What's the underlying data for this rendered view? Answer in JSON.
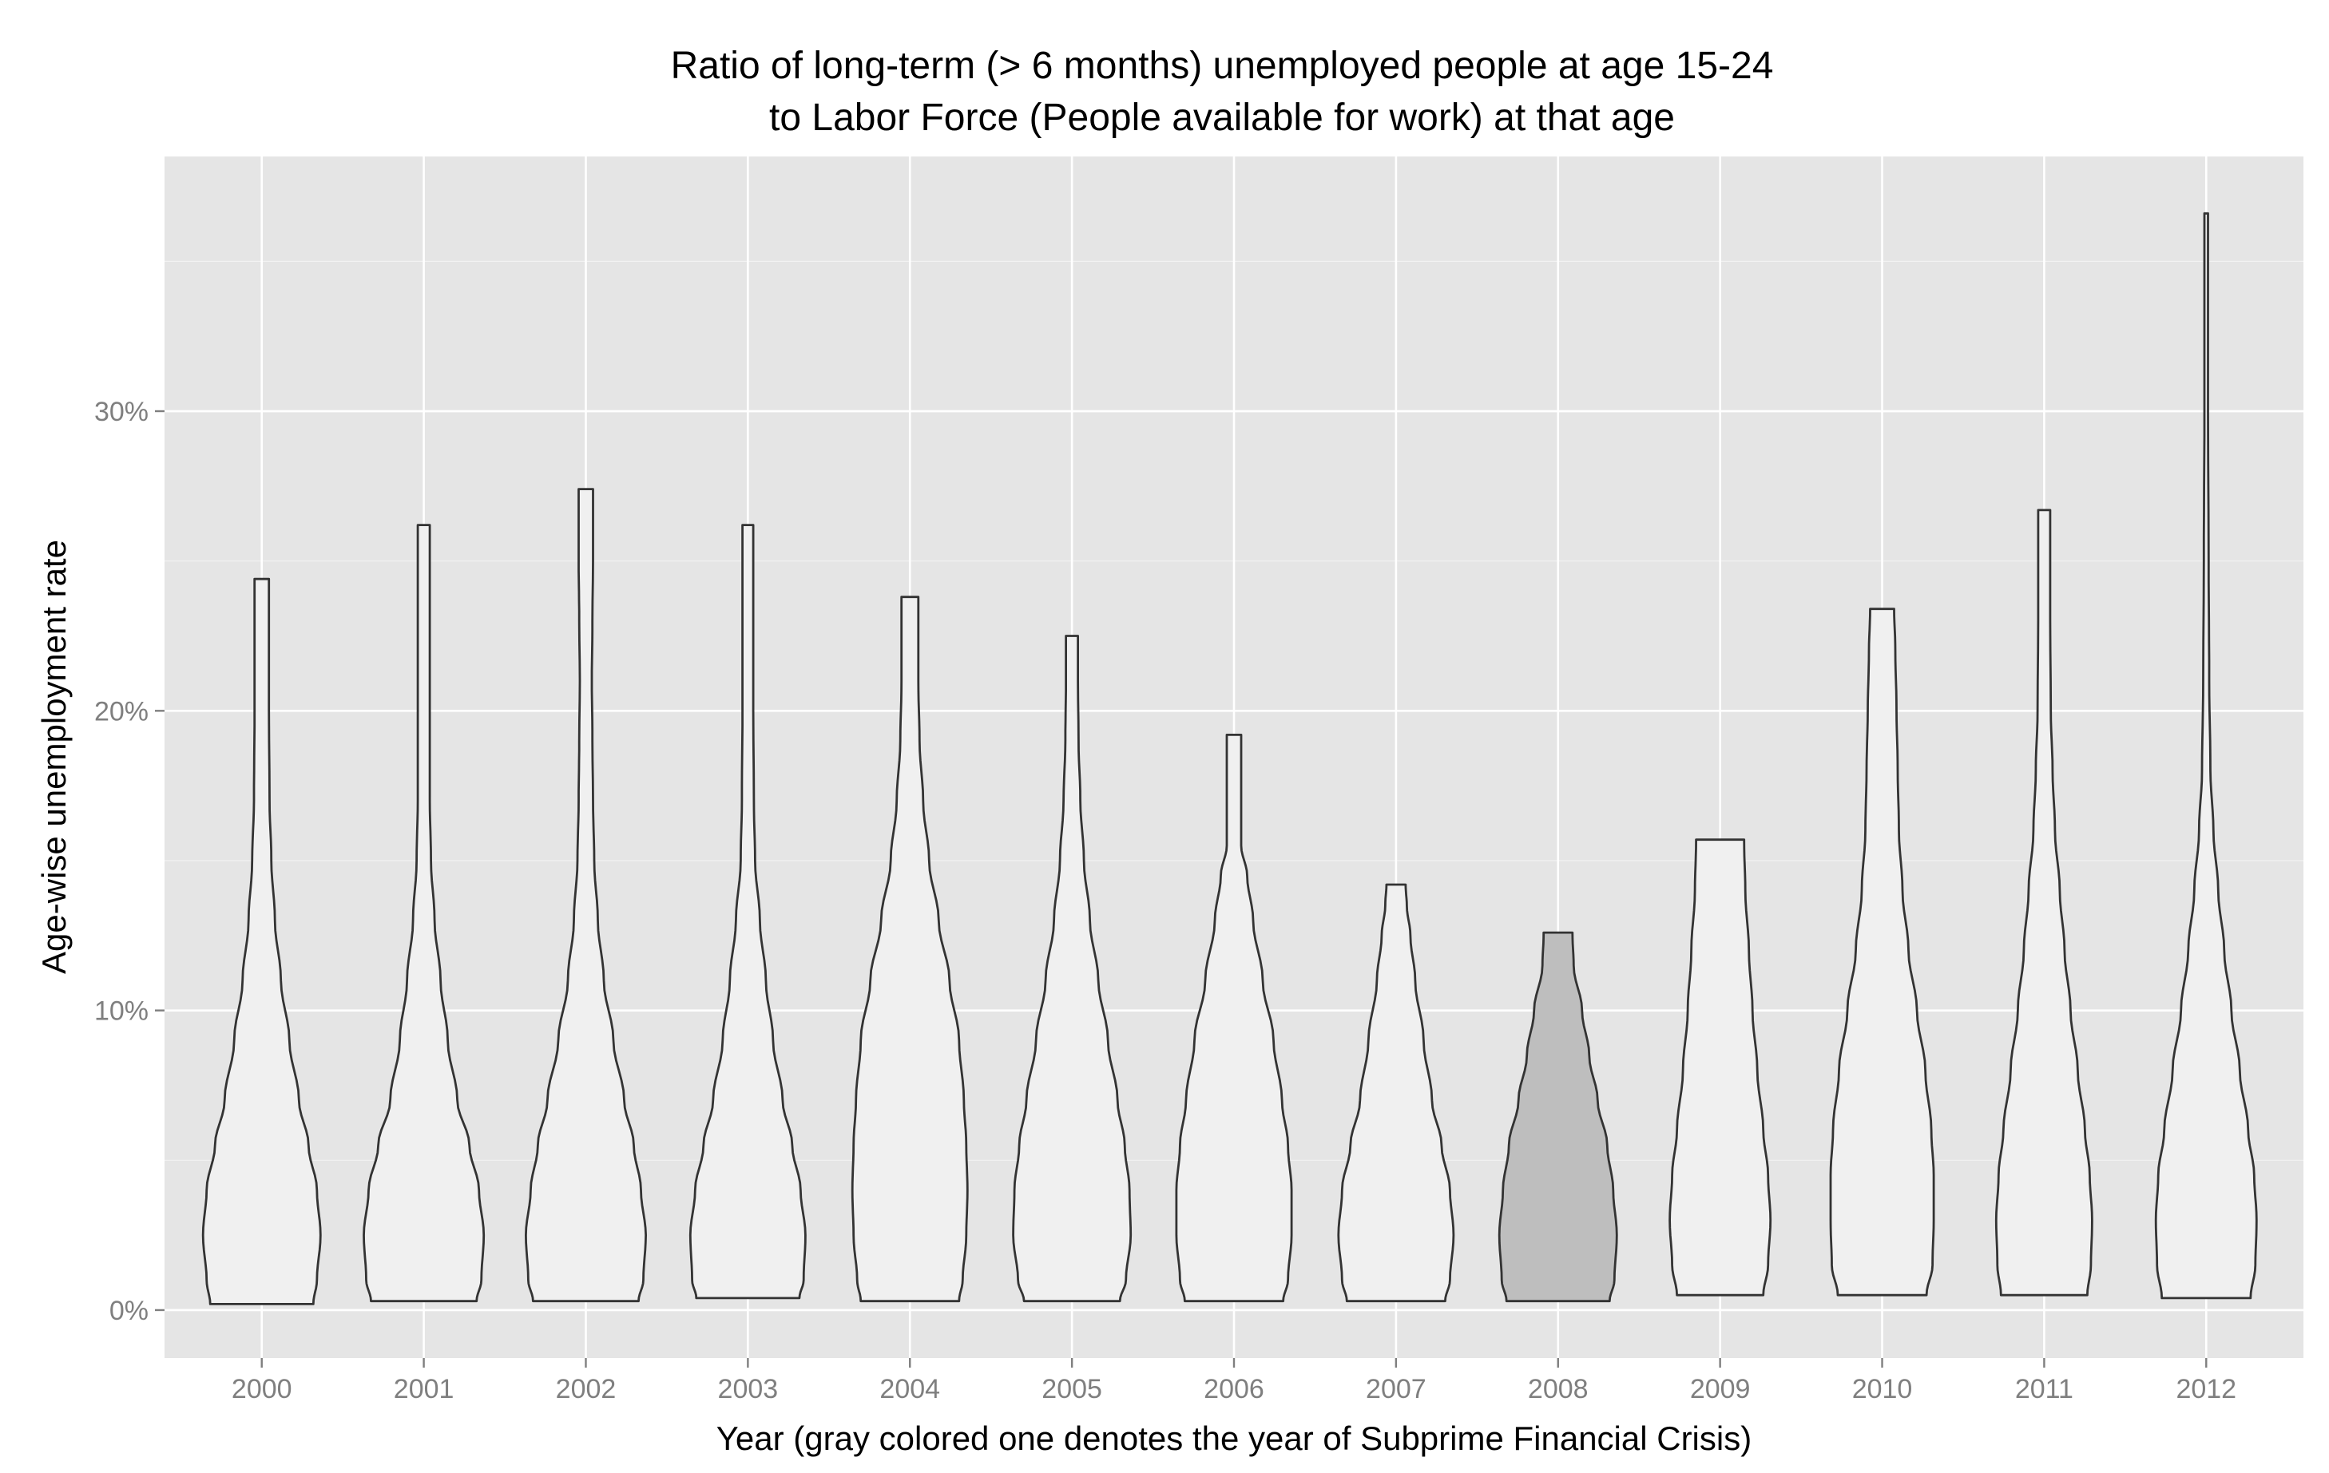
{
  "chart_data": {
    "type": "violin",
    "title": "Ratio of long-term (> 6 months) unemployed people at age 15-24",
    "subtitle": "to Labor Force (People available for work) at that age",
    "xlabel": "Year (gray colored one denotes the year of Subprime Financial Crisis)",
    "ylabel": "Age-wise unemployment rate",
    "categories": [
      "2000",
      "2001",
      "2002",
      "2003",
      "2004",
      "2005",
      "2006",
      "2007",
      "2008",
      "2009",
      "2010",
      "2011",
      "2012"
    ],
    "highlight_category": "2008",
    "ylim": [
      -1.6,
      38.5
    ],
    "y_ticks": [
      0,
      10,
      20,
      30
    ],
    "y_tick_labels": [
      "0%",
      "10%",
      "20%",
      "30%"
    ],
    "grid": true,
    "colors": {
      "panel_background": "#e5e5e5",
      "grid": "#ffffff",
      "violin_fill": "#f0f0f0",
      "violin_highlight_fill": "#bebebe",
      "violin_stroke": "#333333"
    },
    "series": [
      {
        "category": "2000",
        "min": 0.2,
        "max": 24.4,
        "profile": [
          [
            0.2,
            0.86
          ],
          [
            1.0,
            0.92
          ],
          [
            2.5,
            0.98
          ],
          [
            4.0,
            0.92
          ],
          [
            5.5,
            0.78
          ],
          [
            7.0,
            0.62
          ],
          [
            9.0,
            0.46
          ],
          [
            11.0,
            0.32
          ],
          [
            13.0,
            0.22
          ],
          [
            15.0,
            0.16
          ],
          [
            17.0,
            0.13
          ],
          [
            20.0,
            0.12
          ],
          [
            23.0,
            0.12
          ],
          [
            24.4,
            0.12
          ]
        ]
      },
      {
        "category": "2001",
        "min": 0.3,
        "max": 26.2,
        "profile": [
          [
            0.3,
            0.88
          ],
          [
            1.0,
            0.96
          ],
          [
            2.5,
            1.0
          ],
          [
            4.0,
            0.92
          ],
          [
            5.5,
            0.76
          ],
          [
            7.0,
            0.56
          ],
          [
            9.0,
            0.4
          ],
          [
            11.0,
            0.28
          ],
          [
            13.0,
            0.18
          ],
          [
            15.0,
            0.12
          ],
          [
            17.0,
            0.1
          ],
          [
            20.0,
            0.1
          ],
          [
            24.0,
            0.1
          ],
          [
            26.2,
            0.1
          ]
        ]
      },
      {
        "category": "2002",
        "min": 0.3,
        "max": 27.4,
        "profile": [
          [
            0.3,
            0.88
          ],
          [
            1.0,
            0.96
          ],
          [
            2.5,
            1.0
          ],
          [
            4.0,
            0.92
          ],
          [
            5.5,
            0.8
          ],
          [
            7.0,
            0.64
          ],
          [
            9.0,
            0.46
          ],
          [
            11.0,
            0.3
          ],
          [
            13.0,
            0.2
          ],
          [
            15.0,
            0.14
          ],
          [
            17.0,
            0.12
          ],
          [
            19.0,
            0.11
          ],
          [
            21.0,
            0.1
          ],
          [
            23.0,
            0.11
          ],
          [
            25.0,
            0.12
          ],
          [
            27.4,
            0.12
          ]
        ]
      },
      {
        "category": "2003",
        "min": 0.4,
        "max": 26.2,
        "profile": [
          [
            0.4,
            0.86
          ],
          [
            1.0,
            0.93
          ],
          [
            2.5,
            0.96
          ],
          [
            4.0,
            0.88
          ],
          [
            5.5,
            0.74
          ],
          [
            7.0,
            0.58
          ],
          [
            9.0,
            0.42
          ],
          [
            11.0,
            0.3
          ],
          [
            13.0,
            0.2
          ],
          [
            15.0,
            0.12
          ],
          [
            17.0,
            0.1
          ],
          [
            20.0,
            0.09
          ],
          [
            23.0,
            0.09
          ],
          [
            26.2,
            0.09
          ]
        ]
      },
      {
        "category": "2004",
        "min": 0.3,
        "max": 23.8,
        "profile": [
          [
            0.3,
            0.82
          ],
          [
            1.0,
            0.88
          ],
          [
            2.5,
            0.94
          ],
          [
            4.0,
            0.96
          ],
          [
            5.5,
            0.94
          ],
          [
            7.0,
            0.9
          ],
          [
            9.0,
            0.82
          ],
          [
            11.0,
            0.66
          ],
          [
            13.0,
            0.48
          ],
          [
            15.0,
            0.32
          ],
          [
            17.0,
            0.22
          ],
          [
            19.0,
            0.16
          ],
          [
            21.0,
            0.14
          ],
          [
            23.8,
            0.14
          ]
        ]
      },
      {
        "category": "2005",
        "min": 0.3,
        "max": 22.5,
        "profile": [
          [
            0.3,
            0.8
          ],
          [
            1.0,
            0.9
          ],
          [
            2.5,
            0.98
          ],
          [
            4.0,
            0.96
          ],
          [
            5.5,
            0.88
          ],
          [
            7.0,
            0.76
          ],
          [
            9.0,
            0.6
          ],
          [
            11.0,
            0.44
          ],
          [
            13.0,
            0.3
          ],
          [
            15.0,
            0.2
          ],
          [
            17.0,
            0.14
          ],
          [
            19.0,
            0.11
          ],
          [
            21.0,
            0.1
          ],
          [
            22.5,
            0.1
          ]
        ]
      },
      {
        "category": "2006",
        "min": 0.3,
        "max": 19.2,
        "profile": [
          [
            0.3,
            0.82
          ],
          [
            1.0,
            0.9
          ],
          [
            2.5,
            0.96
          ],
          [
            4.0,
            0.96
          ],
          [
            5.5,
            0.9
          ],
          [
            7.0,
            0.8
          ],
          [
            9.0,
            0.66
          ],
          [
            11.0,
            0.48
          ],
          [
            13.0,
            0.32
          ],
          [
            14.5,
            0.22
          ],
          [
            15.5,
            0.12
          ],
          [
            17.0,
            0.12
          ],
          [
            19.2,
            0.12
          ]
        ]
      },
      {
        "category": "2007",
        "min": 0.3,
        "max": 14.2,
        "profile": [
          [
            0.3,
            0.82
          ],
          [
            1.0,
            0.9
          ],
          [
            2.5,
            0.96
          ],
          [
            4.0,
            0.9
          ],
          [
            5.5,
            0.76
          ],
          [
            7.0,
            0.6
          ],
          [
            9.0,
            0.46
          ],
          [
            11.0,
            0.32
          ],
          [
            12.5,
            0.24
          ],
          [
            13.5,
            0.18
          ],
          [
            14.2,
            0.16
          ]
        ]
      },
      {
        "category": "2008",
        "min": 0.3,
        "max": 12.6,
        "profile": [
          [
            0.3,
            0.86
          ],
          [
            1.0,
            0.94
          ],
          [
            2.5,
            0.98
          ],
          [
            4.0,
            0.92
          ],
          [
            5.5,
            0.82
          ],
          [
            7.0,
            0.66
          ],
          [
            8.5,
            0.52
          ],
          [
            10.0,
            0.4
          ],
          [
            11.5,
            0.26
          ],
          [
            12.6,
            0.24
          ]
        ]
      },
      {
        "category": "2009",
        "min": 0.5,
        "max": 15.7,
        "profile": [
          [
            0.5,
            0.72
          ],
          [
            1.5,
            0.8
          ],
          [
            3.0,
            0.84
          ],
          [
            4.5,
            0.8
          ],
          [
            6.0,
            0.72
          ],
          [
            8.0,
            0.62
          ],
          [
            10.0,
            0.54
          ],
          [
            12.0,
            0.48
          ],
          [
            14.0,
            0.42
          ],
          [
            15.7,
            0.4
          ]
        ]
      },
      {
        "category": "2010",
        "min": 0.5,
        "max": 23.4,
        "profile": [
          [
            0.5,
            0.74
          ],
          [
            1.5,
            0.84
          ],
          [
            3.0,
            0.86
          ],
          [
            4.5,
            0.86
          ],
          [
            6.0,
            0.82
          ],
          [
            8.0,
            0.72
          ],
          [
            10.0,
            0.58
          ],
          [
            12.0,
            0.44
          ],
          [
            14.0,
            0.34
          ],
          [
            16.0,
            0.28
          ],
          [
            18.0,
            0.26
          ],
          [
            20.0,
            0.24
          ],
          [
            22.0,
            0.22
          ],
          [
            23.4,
            0.2
          ]
        ]
      },
      {
        "category": "2011",
        "min": 0.5,
        "max": 26.7,
        "profile": [
          [
            0.5,
            0.72
          ],
          [
            1.5,
            0.78
          ],
          [
            3.0,
            0.8
          ],
          [
            4.5,
            0.76
          ],
          [
            6.0,
            0.68
          ],
          [
            8.0,
            0.56
          ],
          [
            10.0,
            0.44
          ],
          [
            12.0,
            0.34
          ],
          [
            14.0,
            0.26
          ],
          [
            16.0,
            0.18
          ],
          [
            18.0,
            0.14
          ],
          [
            20.0,
            0.11
          ],
          [
            23.0,
            0.1
          ],
          [
            26.7,
            0.1
          ]
        ]
      },
      {
        "category": "2012",
        "min": 0.4,
        "max": 36.6,
        "profile": [
          [
            0.4,
            0.74
          ],
          [
            1.5,
            0.82
          ],
          [
            3.0,
            0.84
          ],
          [
            4.5,
            0.8
          ],
          [
            6.0,
            0.7
          ],
          [
            8.0,
            0.56
          ],
          [
            10.0,
            0.42
          ],
          [
            12.0,
            0.3
          ],
          [
            14.0,
            0.2
          ],
          [
            16.0,
            0.12
          ],
          [
            18.0,
            0.07
          ],
          [
            21.0,
            0.05
          ],
          [
            25.0,
            0.04
          ],
          [
            30.0,
            0.03
          ],
          [
            36.6,
            0.03
          ]
        ]
      }
    ]
  }
}
